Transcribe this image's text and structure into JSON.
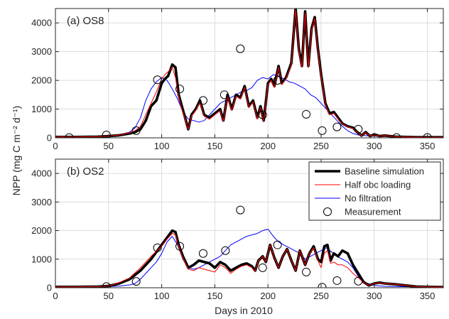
{
  "colors": {
    "baseline": "#000000",
    "half_obc": "#ff0000",
    "no_filtration": "#0000ff",
    "measurement": "#000000",
    "grid": "#dcdcdc"
  },
  "chart_data": [
    {
      "type": "line",
      "title": "(a) OS8",
      "xlabel": "",
      "ylabel": "NPP (mg C m⁻² d⁻¹)",
      "xlim": [
        0,
        365
      ],
      "ylim": [
        0,
        4500
      ],
      "xticks": [
        "0",
        "50",
        "100",
        "150",
        "200",
        "250",
        "300",
        "350"
      ],
      "yticks": [
        "0",
        "1000",
        "2000",
        "3000",
        "4000"
      ],
      "grid": true,
      "series": [
        {
          "name": "Baseline simulation",
          "x": [
            0,
            20,
            40,
            50,
            60,
            70,
            75,
            80,
            85,
            90,
            95,
            100,
            103,
            106,
            110,
            113,
            116,
            119,
            122,
            125,
            128,
            132,
            136,
            140,
            145,
            150,
            155,
            158,
            162,
            166,
            170,
            174,
            178,
            182,
            186,
            190,
            193,
            196,
            200,
            203,
            206,
            210,
            213,
            217,
            222,
            226,
            229,
            232,
            235,
            238,
            241,
            244,
            247,
            250,
            254,
            258,
            262,
            266,
            270,
            275,
            280,
            284,
            288,
            292,
            296,
            300,
            305,
            310,
            320,
            330,
            340,
            350,
            365
          ],
          "y": [
            30,
            30,
            40,
            60,
            90,
            150,
            200,
            300,
            600,
            1100,
            1300,
            1900,
            2050,
            2150,
            2550,
            2450,
            1500,
            1100,
            700,
            300,
            800,
            1000,
            1300,
            800,
            700,
            850,
            1000,
            600,
            1500,
            1000,
            1500,
            1400,
            1800,
            1100,
            1300,
            700,
            1100,
            600,
            1900,
            2050,
            1800,
            2500,
            1900,
            2100,
            2600,
            4500,
            3100,
            2500,
            4400,
            2500,
            3800,
            4200,
            3100,
            2200,
            1200,
            850,
            900,
            700,
            500,
            400,
            350,
            200,
            80,
            200,
            60,
            120,
            60,
            80,
            40,
            30,
            20,
            20,
            20
          ]
        },
        {
          "name": "Half obc loading",
          "x": [
            0,
            20,
            40,
            50,
            60,
            70,
            75,
            80,
            85,
            90,
            95,
            100,
            103,
            106,
            110,
            113,
            116,
            119,
            122,
            125,
            128,
            132,
            136,
            140,
            145,
            150,
            155,
            158,
            162,
            166,
            170,
            174,
            178,
            182,
            186,
            190,
            193,
            196,
            200,
            203,
            206,
            210,
            213,
            217,
            222,
            226,
            229,
            232,
            235,
            238,
            241,
            244,
            247,
            250,
            254,
            258,
            262,
            266,
            270,
            275,
            280,
            284,
            288,
            292,
            296,
            300,
            305,
            310,
            320,
            330,
            340,
            350,
            365
          ],
          "y": [
            30,
            30,
            40,
            60,
            100,
            180,
            250,
            400,
            800,
            1200,
            1600,
            2050,
            2200,
            2300,
            2450,
            2100,
            1400,
            1000,
            650,
            300,
            750,
            950,
            1250,
            750,
            650,
            800,
            950,
            580,
            1450,
            950,
            1450,
            1350,
            1750,
            1050,
            1250,
            650,
            1050,
            580,
            1850,
            2000,
            1750,
            2450,
            1850,
            2050,
            2550,
            4450,
            3050,
            2450,
            4350,
            2450,
            3750,
            4150,
            3050,
            2150,
            1150,
            800,
            850,
            650,
            480,
            380,
            330,
            190,
            80,
            190,
            60,
            110,
            60,
            80,
            40,
            30,
            20,
            20,
            20
          ]
        },
        {
          "name": "No filtration",
          "x": [
            0,
            20,
            40,
            50,
            60,
            70,
            75,
            80,
            85,
            90,
            95,
            100,
            105,
            110,
            115,
            120,
            125,
            130,
            135,
            140,
            145,
            150,
            155,
            160,
            165,
            170,
            175,
            180,
            185,
            190,
            195,
            200,
            205,
            210,
            215,
            220,
            225,
            230,
            235,
            240,
            245,
            250,
            255,
            260,
            265,
            270,
            275,
            280,
            285,
            290,
            300,
            310,
            320,
            340,
            365
          ],
          "y": [
            20,
            20,
            30,
            50,
            100,
            200,
            350,
            700,
            1300,
            1700,
            1950,
            2100,
            2000,
            1700,
            1350,
            900,
            650,
            600,
            550,
            600,
            800,
            1000,
            1200,
            1300,
            1400,
            1500,
            1600,
            1650,
            1750,
            2000,
            2100,
            2050,
            2200,
            2150,
            2050,
            1950,
            1900,
            1800,
            1700,
            1500,
            1400,
            1200,
            1000,
            800,
            600,
            400,
            250,
            150,
            100,
            80,
            60,
            50,
            40,
            30,
            20
          ]
        },
        {
          "name": "Measurement",
          "style": "markers",
          "x": [
            13,
            48,
            76,
            96,
            117,
            139,
            159,
            174,
            195,
            209,
            236,
            251,
            265,
            285,
            321,
            350
          ],
          "y": [
            10,
            100,
            250,
            2020,
            1700,
            1300,
            1500,
            3100,
            800,
            2000,
            820,
            250,
            380,
            300,
            10,
            15
          ]
        }
      ]
    },
    {
      "type": "line",
      "title": "(b) OS2",
      "xlabel": "Days in 2010",
      "ylabel": "NPP (mg C m⁻² d⁻¹)",
      "xlim": [
        0,
        365
      ],
      "ylim": [
        0,
        4500
      ],
      "xticks": [
        "0",
        "50",
        "100",
        "150",
        "200",
        "250",
        "300",
        "350"
      ],
      "yticks": [
        "0",
        "1000",
        "2000",
        "3000",
        "4000"
      ],
      "grid": true,
      "legend": "top-right",
      "series": [
        {
          "name": "Baseline simulation",
          "x": [
            0,
            20,
            40,
            50,
            60,
            70,
            80,
            90,
            100,
            105,
            110,
            113,
            116,
            120,
            125,
            130,
            135,
            140,
            145,
            150,
            155,
            160,
            165,
            170,
            175,
            180,
            185,
            188,
            191,
            195,
            198,
            202,
            206,
            210,
            214,
            218,
            222,
            226,
            230,
            235,
            239,
            243,
            247,
            250,
            253,
            256,
            259,
            262,
            266,
            270,
            275,
            280,
            285,
            290,
            295,
            300,
            305,
            310,
            320,
            330,
            340,
            350,
            365
          ],
          "y": [
            30,
            30,
            40,
            60,
            150,
            300,
            600,
            1000,
            1500,
            1750,
            2000,
            1950,
            1500,
            1100,
            700,
            800,
            950,
            900,
            850,
            700,
            900,
            800,
            600,
            700,
            800,
            850,
            750,
            600,
            950,
            1100,
            900,
            1500,
            1050,
            700,
            1100,
            1350,
            950,
            600,
            1300,
            800,
            1200,
            1450,
            1000,
            900,
            1450,
            1500,
            950,
            1200,
            1100,
            1300,
            1200,
            800,
            500,
            200,
            80,
            150,
            180,
            150,
            120,
            80,
            40,
            30,
            20
          ]
        },
        {
          "name": "Half obc loading",
          "x": [
            0,
            20,
            40,
            50,
            60,
            70,
            80,
            90,
            100,
            105,
            110,
            113,
            116,
            120,
            125,
            130,
            135,
            140,
            145,
            150,
            155,
            160,
            165,
            170,
            175,
            180,
            185,
            188,
            191,
            195,
            198,
            202,
            206,
            210,
            214,
            218,
            222,
            226,
            230,
            235,
            239,
            243,
            247,
            250,
            253,
            256,
            259,
            262,
            266,
            270,
            275,
            280,
            285,
            290,
            295,
            300,
            305,
            310,
            320,
            330,
            340,
            350,
            365
          ],
          "y": [
            30,
            30,
            40,
            60,
            180,
            350,
            700,
            1100,
            1450,
            1700,
            1900,
            1850,
            1450,
            1050,
            650,
            600,
            700,
            650,
            600,
            550,
            800,
            700,
            500,
            650,
            750,
            800,
            700,
            580,
            950,
            1100,
            900,
            1500,
            1050,
            700,
            1100,
            1350,
            950,
            600,
            1300,
            800,
            1200,
            1400,
            950,
            700,
            1200,
            1300,
            850,
            900,
            800,
            800,
            700,
            500,
            350,
            180,
            80,
            150,
            170,
            150,
            120,
            80,
            40,
            30,
            20
          ]
        },
        {
          "name": "No filtration",
          "x": [
            0,
            20,
            40,
            50,
            60,
            70,
            75,
            80,
            85,
            90,
            95,
            100,
            105,
            110,
            115,
            120,
            125,
            130,
            135,
            140,
            145,
            150,
            155,
            160,
            165,
            170,
            175,
            180,
            185,
            190,
            195,
            200,
            205,
            210,
            215,
            220,
            225,
            230,
            235,
            240,
            245,
            250,
            255,
            260,
            265,
            270,
            275,
            280,
            285,
            290,
            300,
            310,
            320,
            340,
            365
          ],
          "y": [
            20,
            20,
            30,
            40,
            60,
            100,
            150,
            300,
            500,
            700,
            900,
            1200,
            1600,
            1800,
            1500,
            1000,
            700,
            650,
            700,
            800,
            900,
            1000,
            1100,
            1300,
            1500,
            1600,
            1700,
            1800,
            1850,
            1900,
            2000,
            2050,
            1800,
            1600,
            1500,
            1400,
            1300,
            1200,
            1000,
            1100,
            1200,
            1300,
            1400,
            1250,
            1100,
            1000,
            900,
            700,
            400,
            200,
            80,
            50,
            40,
            30,
            20
          ]
        },
        {
          "name": "Measurement",
          "style": "markers",
          "x": [
            48,
            76,
            96,
            117,
            139,
            160,
            174,
            195,
            209,
            236,
            251,
            265,
            285
          ],
          "y": [
            40,
            220,
            1400,
            1450,
            1200,
            1300,
            2720,
            700,
            1500,
            550,
            20,
            250,
            230
          ]
        }
      ]
    }
  ]
}
